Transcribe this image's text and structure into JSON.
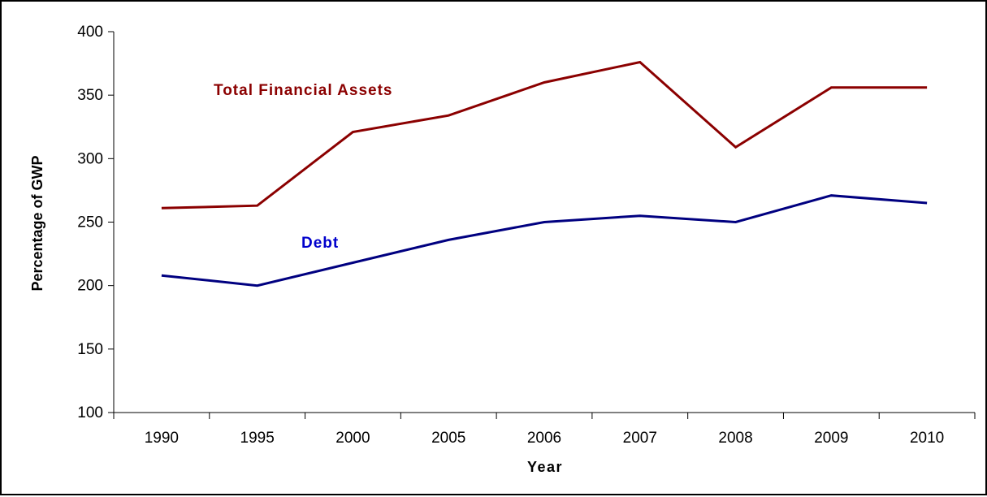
{
  "chart_data": {
    "type": "line",
    "title": "",
    "xlabel": "Year",
    "ylabel": "Percentage of GWP",
    "categories": [
      "1990",
      "1995",
      "2000",
      "2005",
      "2006",
      "2007",
      "2008",
      "2009",
      "2010"
    ],
    "ylim": [
      100,
      400
    ],
    "yticks": [
      100,
      150,
      200,
      250,
      300,
      350,
      400
    ],
    "grid": false,
    "legend": "none",
    "series": [
      {
        "name": "Total Financial Assets",
        "color": "#8B0000",
        "values": [
          261,
          263,
          321,
          334,
          360,
          376,
          309,
          356,
          356
        ]
      },
      {
        "name": "Debt",
        "color": "#000080",
        "label_color": "#0000CC",
        "values": [
          208,
          200,
          218,
          236,
          250,
          255,
          250,
          271,
          265
        ]
      }
    ]
  }
}
